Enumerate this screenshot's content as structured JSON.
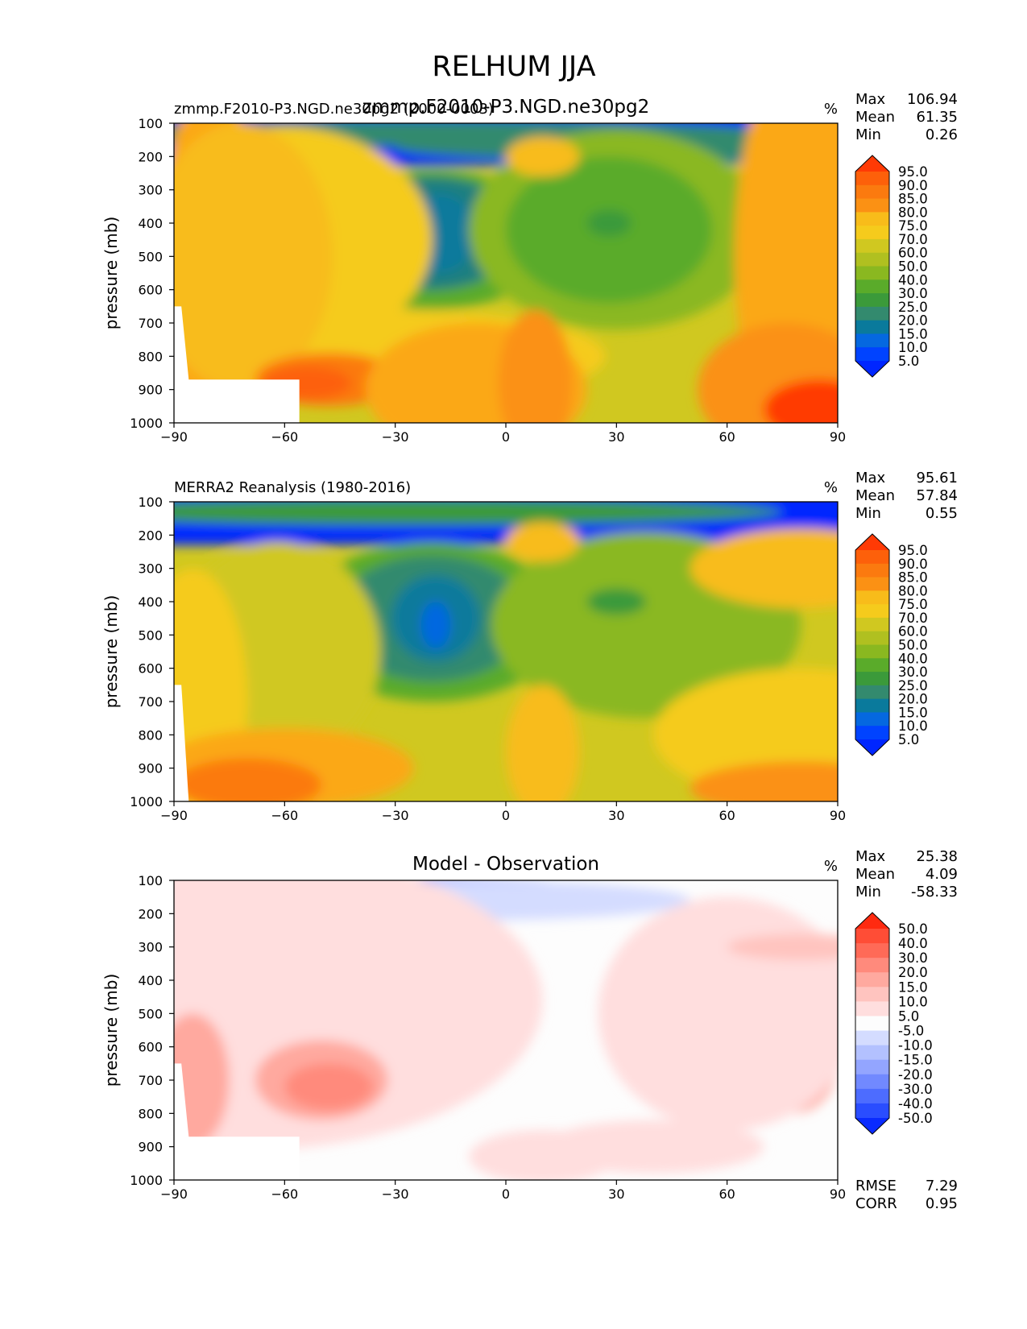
{
  "title": "RELHUM JJA",
  "colors": {
    "abs_scale": [
      "#0026ff",
      "#0043ff",
      "#0568e0",
      "#0a7a9c",
      "#1e7f80",
      "#338a6e",
      "#3b9a3a",
      "#5aab2a",
      "#8ab820",
      "#b0c020",
      "#d0c820",
      "#f5cb1c",
      "#f8bc1a",
      "#fba817",
      "#fb9114",
      "#fb7a0f",
      "#fd600a",
      "#ff3a05"
    ],
    "diff_scale": [
      "#0a2bff",
      "#2a4dff",
      "#4d6cff",
      "#7189ff",
      "#93a5ff",
      "#b3c1ff",
      "#d4dcff",
      "#fdfdfd",
      "#ffdede",
      "#ffc4bf",
      "#ffa99f",
      "#ff8a7c",
      "#ff6a57",
      "#ff4d36",
      "#ff2a10"
    ]
  },
  "chart_data": [
    {
      "type": "contourf",
      "panel": "top",
      "subtitle_left": "zmmp.F2010-P3.NGD.ne30pg2 (2000-0003)",
      "subtitle_center": "zmmp.F2010-P3.NGD.ne30pg2",
      "units": "%",
      "ylabel": "pressure (mb)",
      "xlim": [
        -90,
        90
      ],
      "ylim": [
        1000,
        100
      ],
      "xticks": [
        -90,
        -60,
        -30,
        0,
        30,
        60,
        90
      ],
      "xtick_labels": [
        "−90",
        "−60",
        "−30",
        "0",
        "30",
        "60",
        "90"
      ],
      "yticks": [
        100,
        200,
        300,
        400,
        500,
        600,
        700,
        800,
        900,
        1000
      ],
      "stats": {
        "Max": "106.94",
        "Mean": "61.35",
        "Min": "0.26"
      },
      "levels": [
        5,
        10,
        15,
        20,
        25,
        30,
        40,
        50,
        60,
        70,
        75,
        80,
        85,
        90,
        95
      ],
      "colorbar_labels": [
        "95.0",
        "90.0",
        "85.0",
        "80.0",
        "75.0",
        "70.0",
        "60.0",
        "50.0",
        "40.0",
        "30.0",
        "25.0",
        "20.0",
        "15.0",
        "10.0",
        "5.0"
      ]
    },
    {
      "type": "contourf",
      "panel": "middle",
      "subtitle_left": "MERRA2 Reanalysis (1980-2016)",
      "units": "%",
      "ylabel": "pressure (mb)",
      "xlim": [
        -90,
        90
      ],
      "ylim": [
        1000,
        100
      ],
      "xticks": [
        -90,
        -60,
        -30,
        0,
        30,
        60,
        90
      ],
      "xtick_labels": [
        "−90",
        "−60",
        "−30",
        "0",
        "30",
        "60",
        "90"
      ],
      "yticks": [
        100,
        200,
        300,
        400,
        500,
        600,
        700,
        800,
        900,
        1000
      ],
      "stats": {
        "Max": "95.61",
        "Mean": "57.84",
        "Min": "0.55"
      },
      "levels": [
        5,
        10,
        15,
        20,
        25,
        30,
        40,
        50,
        60,
        70,
        75,
        80,
        85,
        90,
        95
      ],
      "colorbar_labels": [
        "95.0",
        "90.0",
        "85.0",
        "80.0",
        "75.0",
        "70.0",
        "60.0",
        "50.0",
        "40.0",
        "30.0",
        "25.0",
        "20.0",
        "15.0",
        "10.0",
        "5.0"
      ]
    },
    {
      "type": "contourf",
      "panel": "bottom",
      "subtitle_center": "Model - Observation",
      "units": "%",
      "ylabel": "pressure (mb)",
      "xlim": [
        -90,
        90
      ],
      "ylim": [
        1000,
        100
      ],
      "xticks": [
        -90,
        -60,
        -30,
        0,
        30,
        60,
        90
      ],
      "xtick_labels": [
        "−90",
        "−60",
        "−30",
        "0",
        "30",
        "60",
        "90"
      ],
      "yticks": [
        100,
        200,
        300,
        400,
        500,
        600,
        700,
        800,
        900,
        1000
      ],
      "stats": {
        "Max": "25.38",
        "Mean": "4.09",
        "Min": "-58.33"
      },
      "metrics": {
        "RMSE": "7.29",
        "CORR": "0.95"
      },
      "levels": [
        -50,
        -40,
        -30,
        -20,
        -15,
        -10,
        -5,
        5,
        10,
        15,
        20,
        30,
        40,
        50
      ],
      "colorbar_labels": [
        "50.0",
        "40.0",
        "30.0",
        "20.0",
        "15.0",
        "10.0",
        "5.0",
        "-5.0",
        "-10.0",
        "-15.0",
        "-20.0",
        "-30.0",
        "-40.0",
        "-50.0"
      ]
    }
  ]
}
